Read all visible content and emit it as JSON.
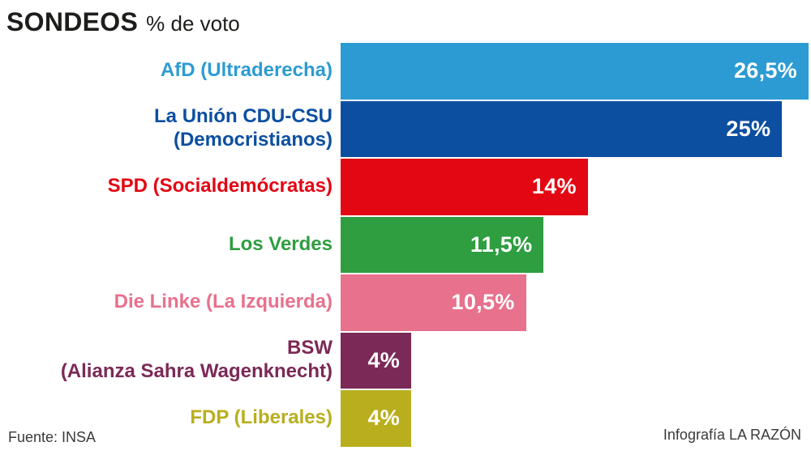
{
  "title": {
    "main": "SONDEOS",
    "sub": "% de voto"
  },
  "footer": {
    "source": "Fuente: INSA",
    "credit": "Infografía LA RAZÓN"
  },
  "chart_data": {
    "type": "bar",
    "orientation": "horizontal",
    "title": "SONDEOS % de voto",
    "unit": "percent of vote",
    "xlim": [
      0,
      26.5
    ],
    "max_value": 26.5,
    "grid": false,
    "legend": "none",
    "value_label_position": "inside-right",
    "category_label_position": "left",
    "categories": [
      "AfD (Ultraderecha)",
      "La Unión CDU-CSU (Democristianos)",
      "SPD (Socialdemócratas)",
      "Los Verdes",
      "Die Linke (La Izquierda)",
      "BSW (Alianza Sahra Wagenknecht)",
      "FDP (Liberales)"
    ],
    "values": [
      26.5,
      25,
      14,
      11.5,
      10.5,
      4,
      4
    ],
    "bars": [
      {
        "label_lines": [
          "AfD (Ultraderecha)"
        ],
        "value": 26.5,
        "value_label": "26,5%",
        "color": "#2D9BD3"
      },
      {
        "label_lines": [
          "La Unión CDU-CSU",
          "(Democristianos)"
        ],
        "value": 25,
        "value_label": "25%",
        "color": "#0C4FA0"
      },
      {
        "label_lines": [
          "SPD (Socialdemócratas)"
        ],
        "value": 14,
        "value_label": "14%",
        "color": "#E30613"
      },
      {
        "label_lines": [
          "Los Verdes"
        ],
        "value": 11.5,
        "value_label": "11,5%",
        "color": "#2E9E40"
      },
      {
        "label_lines": [
          "Die Linke (La Izquierda)"
        ],
        "value": 10.5,
        "value_label": "10,5%",
        "color": "#E8718D"
      },
      {
        "label_lines": [
          "BSW",
          "(Alianza Sahra Wagenknecht)"
        ],
        "value": 4,
        "value_label": "4%",
        "color": "#7B2956"
      },
      {
        "label_lines": [
          "FDP (Liberales)"
        ],
        "value": 4,
        "value_label": "4%",
        "color": "#B9AE1E"
      }
    ]
  }
}
